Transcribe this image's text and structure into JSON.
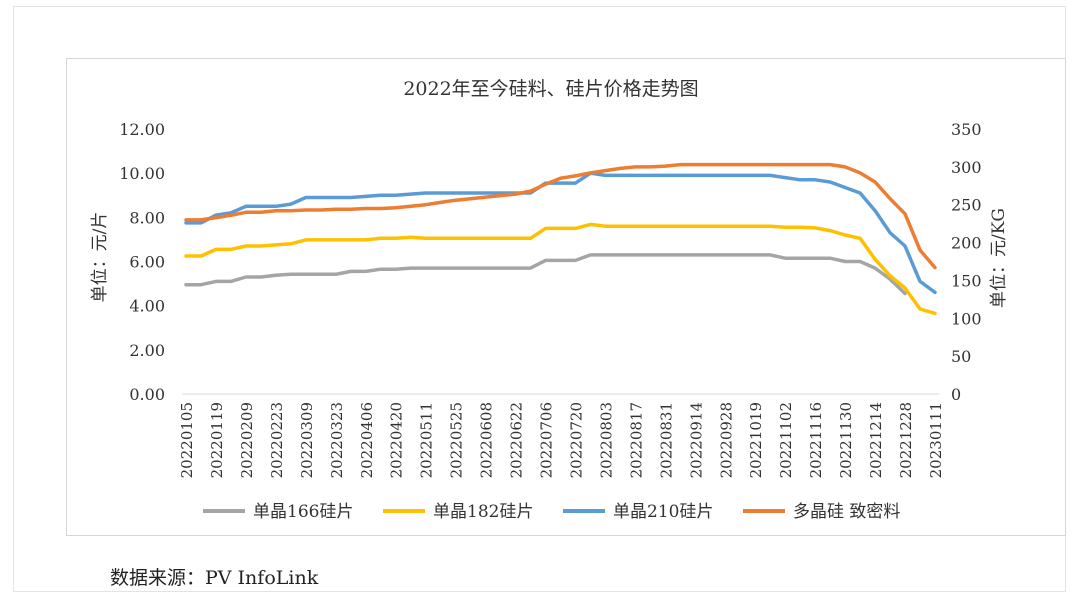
{
  "chart_data": {
    "type": "line",
    "title": "2022年至今硅料、硅片价格走势图",
    "ylabel": "单位：元/片",
    "y2label": "元/KG",
    "ylim": [
      0,
      12
    ],
    "y2lim": [
      0,
      350
    ],
    "y_ticks": [
      "0.00",
      "2.00",
      "4.00",
      "6.00",
      "8.00",
      "10.00",
      "12.00"
    ],
    "y2_ticks": [
      "0",
      "50",
      "100",
      "150",
      "200",
      "250",
      "300",
      "350"
    ],
    "x_tick_labels": [
      "20220105",
      "20220119",
      "20220209",
      "20220223",
      "20220309",
      "20220323",
      "20220406",
      "20220420",
      "20220511",
      "20220525",
      "20220608",
      "20220622",
      "20220706",
      "20220720",
      "20220803",
      "20220817",
      "20220831",
      "20220914",
      "20220928",
      "20221019",
      "20221102",
      "20221116",
      "20221130",
      "20221214",
      "20221228",
      "20230111"
    ],
    "x": [
      "20220105",
      "20220112",
      "20220119",
      "20220126",
      "20220209",
      "20220216",
      "20220223",
      "20220302",
      "20220309",
      "20220316",
      "20220323",
      "20220330",
      "20220406",
      "20220413",
      "20220420",
      "20220427",
      "20220511",
      "20220518",
      "20220525",
      "20220601",
      "20220608",
      "20220615",
      "20220622",
      "20220629",
      "20220706",
      "20220713",
      "20220720",
      "20220727",
      "20220803",
      "20220810",
      "20220817",
      "20220824",
      "20220831",
      "20220907",
      "20220914",
      "20220921",
      "20220928",
      "20221012",
      "20221019",
      "20221026",
      "20221102",
      "20221109",
      "20221116",
      "20221123",
      "20221130",
      "20221207",
      "20221214",
      "20221221",
      "20221228",
      "20230104",
      "20230111"
    ],
    "series": [
      {
        "name": "单晶166硅片",
        "axis": "left",
        "color": "#a5a5a5",
        "values": [
          4.95,
          4.95,
          5.1,
          5.1,
          5.3,
          5.3,
          5.38,
          5.42,
          5.42,
          5.42,
          5.42,
          5.55,
          5.55,
          5.65,
          5.65,
          5.7,
          5.7,
          5.7,
          5.7,
          5.7,
          5.7,
          5.7,
          5.7,
          5.7,
          6.05,
          6.05,
          6.05,
          6.3,
          6.3,
          6.3,
          6.3,
          6.3,
          6.3,
          6.3,
          6.3,
          6.3,
          6.3,
          6.3,
          6.3,
          6.3,
          6.15,
          6.15,
          6.15,
          6.15,
          6.0,
          6.0,
          5.7,
          5.2,
          4.55,
          null,
          null
        ]
      },
      {
        "name": "单晶182硅片",
        "axis": "left",
        "color": "#ffc000",
        "values": [
          6.25,
          6.25,
          6.55,
          6.55,
          6.7,
          6.7,
          6.75,
          6.8,
          6.98,
          6.98,
          6.98,
          6.98,
          6.98,
          7.05,
          7.05,
          7.1,
          7.05,
          7.05,
          7.05,
          7.05,
          7.05,
          7.05,
          7.05,
          7.05,
          7.5,
          7.5,
          7.5,
          7.68,
          7.6,
          7.6,
          7.6,
          7.6,
          7.6,
          7.6,
          7.6,
          7.6,
          7.6,
          7.6,
          7.6,
          7.6,
          7.55,
          7.55,
          7.52,
          7.4,
          7.2,
          7.05,
          6.1,
          5.35,
          4.8,
          3.85,
          3.65
        ]
      },
      {
        "name": "单晶210硅片",
        "axis": "left",
        "color": "#5b9bd5",
        "values": [
          7.75,
          7.75,
          8.1,
          8.2,
          8.5,
          8.5,
          8.5,
          8.6,
          8.9,
          8.9,
          8.9,
          8.9,
          8.95,
          9.0,
          9.0,
          9.05,
          9.1,
          9.1,
          9.1,
          9.1,
          9.1,
          9.1,
          9.1,
          9.1,
          9.55,
          9.55,
          9.55,
          10.0,
          9.9,
          9.9,
          9.9,
          9.9,
          9.9,
          9.9,
          9.9,
          9.9,
          9.9,
          9.9,
          9.9,
          9.9,
          9.8,
          9.7,
          9.7,
          9.6,
          9.35,
          9.1,
          8.3,
          7.3,
          6.7,
          5.1,
          4.6
        ]
      },
      {
        "name": "多晶硅 致密料",
        "axis": "right",
        "color": "#ed7d31",
        "values": [
          230,
          230,
          233,
          236,
          240,
          240,
          242,
          242,
          243,
          243,
          244,
          244,
          245,
          245,
          246,
          248,
          250,
          253,
          256,
          258,
          260,
          262,
          264,
          268,
          277,
          285,
          288,
          292,
          295,
          298,
          300,
          300,
          301,
          303,
          303,
          303,
          303,
          303,
          303,
          303,
          303,
          303,
          303,
          303,
          300,
          292,
          280,
          258,
          238,
          190,
          167
        ]
      }
    ]
  },
  "source_text": "数据来源：PV InfoLink"
}
